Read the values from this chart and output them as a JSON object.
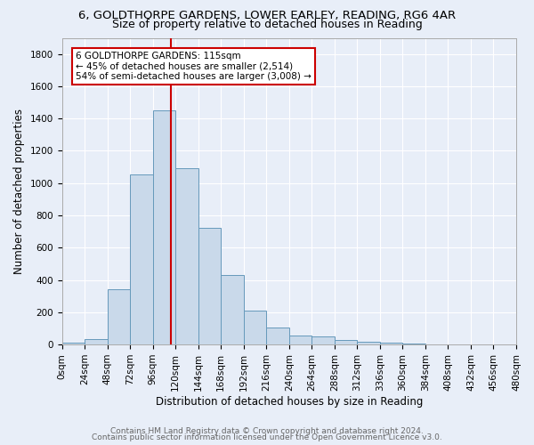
{
  "title_line1": "6, GOLDTHORPE GARDENS, LOWER EARLEY, READING, RG6 4AR",
  "title_line2": "Size of property relative to detached houses in Reading",
  "xlabel": "Distribution of detached houses by size in Reading",
  "ylabel": "Number of detached properties",
  "footer_line1": "Contains HM Land Registry data © Crown copyright and database right 2024.",
  "footer_line2": "Contains public sector information licensed under the Open Government Licence v3.0.",
  "bin_edges": [
    0,
    24,
    48,
    72,
    96,
    120,
    144,
    168,
    192,
    216,
    240,
    264,
    288,
    312,
    336,
    360,
    384,
    408,
    432,
    456,
    480
  ],
  "bin_counts": [
    10,
    35,
    340,
    1055,
    1450,
    1095,
    725,
    430,
    210,
    105,
    55,
    50,
    30,
    15,
    10,
    5,
    3,
    2,
    1,
    1
  ],
  "bar_facecolor": "#c9d9ea",
  "bar_edgecolor": "#6699bb",
  "vline_x": 115,
  "vline_color": "#cc0000",
  "annotation_text_line1": "6 GOLDTHORPE GARDENS: 115sqm",
  "annotation_text_line2": "← 45% of detached houses are smaller (2,514)",
  "annotation_text_line3": "54% of semi-detached houses are larger (3,008) →",
  "annotation_box_edgecolor": "#cc0000",
  "annotation_fontsize": 7.5,
  "ylim": [
    0,
    1900
  ],
  "xlim": [
    0,
    480
  ],
  "tick_labels": [
    "0sqm",
    "24sqm",
    "48sqm",
    "72sqm",
    "96sqm",
    "120sqm",
    "144sqm",
    "168sqm",
    "192sqm",
    "216sqm",
    "240sqm",
    "264sqm",
    "288sqm",
    "312sqm",
    "336sqm",
    "360sqm",
    "384sqm",
    "408sqm",
    "432sqm",
    "456sqm",
    "480sqm"
  ],
  "yticks": [
    0,
    200,
    400,
    600,
    800,
    1000,
    1200,
    1400,
    1600,
    1800
  ],
  "background_color": "#e8eef8",
  "grid_color": "#ffffff",
  "title_fontsize": 9.5,
  "subtitle_fontsize": 9,
  "axis_label_fontsize": 8.5,
  "tick_fontsize": 7.5,
  "footer_fontsize": 6.5
}
